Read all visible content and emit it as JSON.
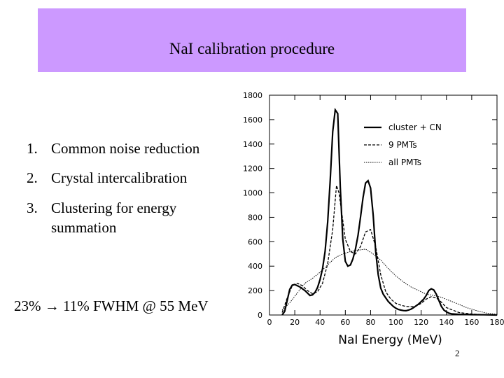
{
  "slide": {
    "title": "NaI calibration procedure",
    "steps": [
      {
        "num": "1.",
        "lines": [
          "Common noise reduction"
        ]
      },
      {
        "num": "2.",
        "lines": [
          "Crystal intercalibration"
        ]
      },
      {
        "num": "3.",
        "lines": [
          "Clustering for energy",
          "summation"
        ]
      }
    ],
    "result": {
      "from": "23%",
      "arrow": "→",
      "to": "11% FWHM @ 55 MeV"
    },
    "page_number": "2"
  },
  "chart_data": {
    "type": "line",
    "title": "",
    "xlabel": "NaI Energy (MeV)",
    "ylabel": "",
    "xlim": [
      0,
      180
    ],
    "ylim": [
      0,
      1800
    ],
    "xticks": [
      0,
      20,
      40,
      60,
      80,
      100,
      120,
      140,
      160,
      180
    ],
    "yticks": [
      0,
      200,
      400,
      600,
      800,
      1000,
      1200,
      1400,
      1600,
      1800
    ],
    "grid": false,
    "legend_position": "top-right",
    "series": [
      {
        "name": "cluster + CN",
        "style": "solid",
        "x": [
          10,
          12,
          14,
          16,
          18,
          20,
          22,
          24,
          26,
          28,
          30,
          32,
          34,
          36,
          38,
          40,
          42,
          44,
          46,
          48,
          50,
          52,
          54,
          56,
          58,
          60,
          62,
          64,
          66,
          68,
          70,
          72,
          74,
          76,
          78,
          80,
          82,
          84,
          86,
          88,
          90,
          92,
          94,
          96,
          98,
          100,
          102,
          104,
          106,
          108,
          110,
          112,
          114,
          116,
          118,
          120,
          122,
          124,
          126,
          128,
          130,
          132,
          134,
          136,
          138,
          140,
          142,
          144,
          146,
          150,
          160,
          170,
          180
        ],
        "y": [
          0,
          30,
          120,
          210,
          245,
          250,
          240,
          230,
          215,
          200,
          180,
          160,
          165,
          185,
          225,
          290,
          380,
          520,
          760,
          1100,
          1500,
          1680,
          1650,
          1050,
          620,
          440,
          400,
          410,
          460,
          540,
          650,
          800,
          960,
          1080,
          1100,
          1040,
          820,
          520,
          330,
          220,
          170,
          140,
          110,
          90,
          70,
          55,
          45,
          40,
          36,
          35,
          40,
          48,
          60,
          75,
          90,
          110,
          130,
          160,
          200,
          215,
          205,
          170,
          120,
          70,
          40,
          25,
          15,
          10,
          8,
          5,
          3,
          2,
          0
        ]
      },
      {
        "name": "9 PMTs",
        "style": "dashed",
        "x": [
          10,
          14,
          18,
          22,
          26,
          30,
          34,
          38,
          42,
          46,
          50,
          53,
          55,
          57,
          60,
          64,
          68,
          72,
          76,
          80,
          84,
          88,
          92,
          96,
          100,
          104,
          108,
          112,
          116,
          120,
          124,
          128,
          132,
          136,
          140,
          150,
          160,
          170,
          180
        ],
        "y": [
          20,
          140,
          240,
          260,
          240,
          200,
          175,
          190,
          260,
          420,
          700,
          1060,
          1000,
          850,
          620,
          520,
          500,
          560,
          680,
          700,
          560,
          330,
          190,
          130,
          95,
          80,
          70,
          68,
          72,
          95,
          130,
          150,
          140,
          105,
          60,
          20,
          8,
          3,
          0
        ]
      },
      {
        "name": "all PMTs",
        "style": "dotted",
        "x": [
          10,
          16,
          22,
          28,
          34,
          40,
          46,
          52,
          58,
          64,
          70,
          76,
          82,
          88,
          94,
          100,
          106,
          112,
          118,
          124,
          130,
          136,
          142,
          148,
          156,
          164,
          172,
          180
        ],
        "y": [
          40,
          100,
          180,
          260,
          300,
          350,
          410,
          470,
          500,
          520,
          530,
          540,
          500,
          450,
          380,
          320,
          270,
          230,
          200,
          170,
          160,
          145,
          120,
          95,
          60,
          35,
          15,
          5
        ]
      }
    ]
  }
}
